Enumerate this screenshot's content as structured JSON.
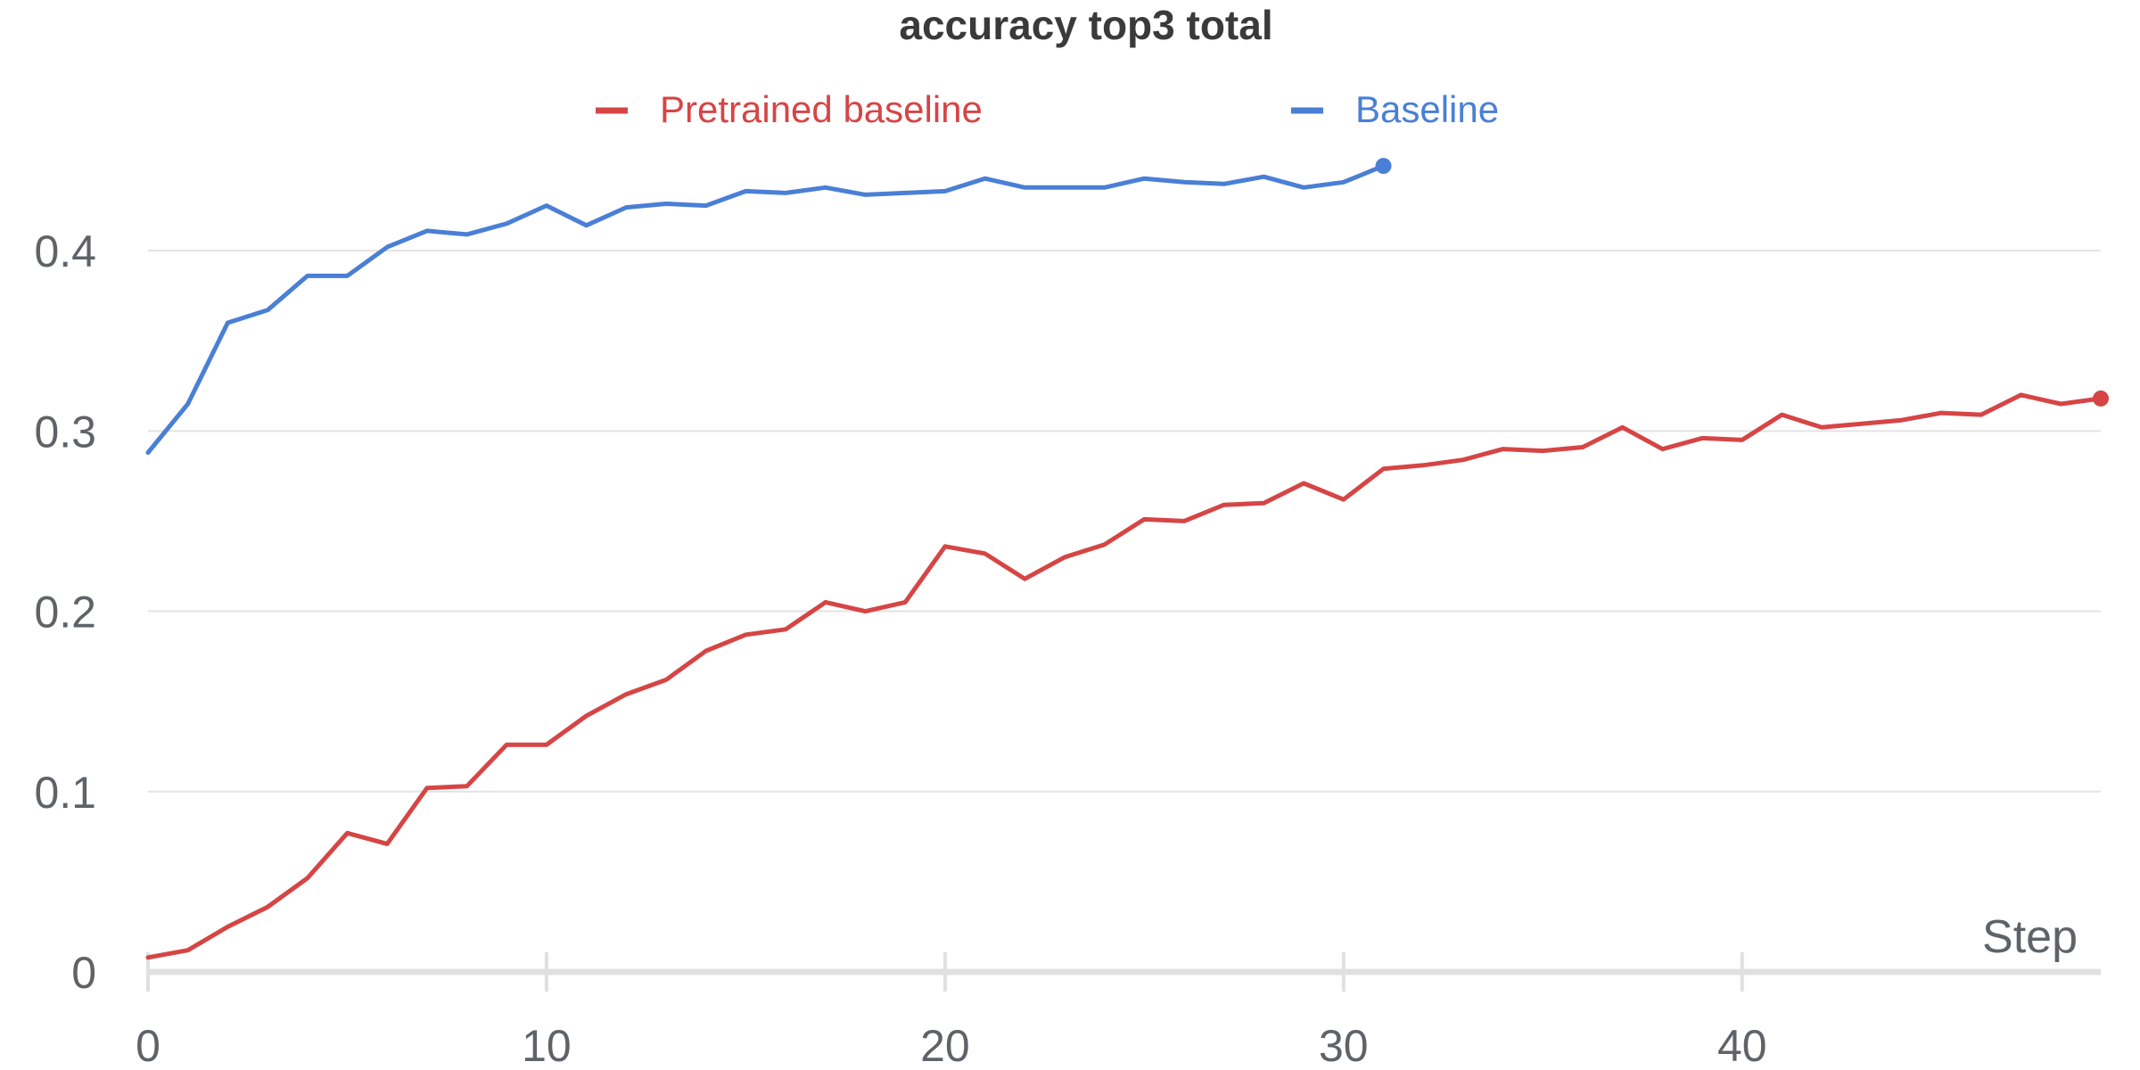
{
  "chart_data": {
    "type": "line",
    "title": "accuracy top3 total",
    "xlabel": "Step",
    "ylabel": "",
    "xlim": [
      0,
      49
    ],
    "ylim": [
      0,
      0.45
    ],
    "x_ticks": [
      0,
      10,
      20,
      30,
      40
    ],
    "y_ticks": [
      0,
      0.1,
      0.2,
      0.3,
      0.4
    ],
    "y_tick_labels": [
      "0",
      "0.1",
      "0.2",
      "0.3",
      "0.4"
    ],
    "grid": true,
    "legend_position": "top",
    "series": [
      {
        "name": "Pretrained baseline",
        "color": "#d64545",
        "x": [
          0,
          1,
          2,
          3,
          4,
          5,
          6,
          7,
          8,
          9,
          10,
          11,
          12,
          13,
          14,
          15,
          16,
          17,
          18,
          19,
          20,
          21,
          22,
          23,
          24,
          25,
          26,
          27,
          28,
          29,
          30,
          31,
          32,
          33,
          34,
          35,
          36,
          37,
          38,
          39,
          40,
          41,
          42,
          43,
          44,
          45,
          46,
          47,
          48,
          49
        ],
        "values": [
          0.008,
          0.012,
          0.025,
          0.036,
          0.052,
          0.077,
          0.071,
          0.102,
          0.103,
          0.126,
          0.126,
          0.142,
          0.154,
          0.162,
          0.178,
          0.187,
          0.19,
          0.205,
          0.2,
          0.205,
          0.236,
          0.232,
          0.218,
          0.23,
          0.237,
          0.251,
          0.25,
          0.259,
          0.26,
          0.271,
          0.262,
          0.279,
          0.281,
          0.284,
          0.29,
          0.289,
          0.291,
          0.302,
          0.29,
          0.296,
          0.295,
          0.309,
          0.302,
          0.304,
          0.306,
          0.31,
          0.309,
          0.32,
          0.315,
          0.318
        ]
      },
      {
        "name": "Baseline",
        "color": "#4a7fd6",
        "x": [
          0,
          1,
          2,
          3,
          4,
          5,
          6,
          7,
          8,
          9,
          10,
          11,
          12,
          13,
          14,
          15,
          16,
          17,
          18,
          19,
          20,
          21,
          22,
          23,
          24,
          25,
          26,
          27,
          28,
          29,
          30,
          31
        ],
        "values": [
          0.288,
          0.315,
          0.36,
          0.367,
          0.386,
          0.386,
          0.402,
          0.411,
          0.409,
          0.415,
          0.425,
          0.414,
          0.424,
          0.426,
          0.425,
          0.433,
          0.432,
          0.435,
          0.431,
          0.432,
          0.433,
          0.44,
          0.435,
          0.435,
          0.435,
          0.44,
          0.438,
          0.437,
          0.441,
          0.435,
          0.438,
          0.447
        ]
      }
    ]
  }
}
